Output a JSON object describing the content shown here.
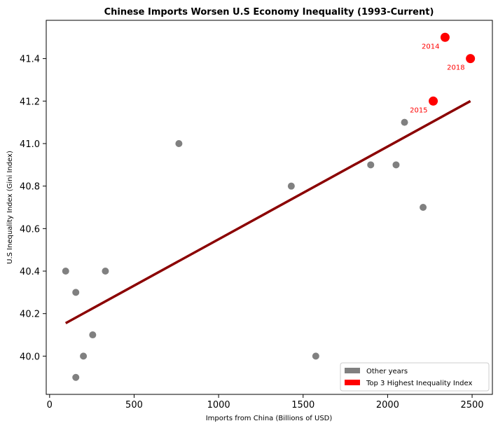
{
  "chart_data": {
    "type": "scatter",
    "title": "Chinese Imports Worsen U.S Economy Inequality (1993-Current)",
    "xlabel": "Imports from China (Billions of USD)",
    "ylabel": "U.S Inequality Index (Gini Index)",
    "xlim": [
      -20,
      2620
    ],
    "ylim": [
      39.82,
      41.58
    ],
    "xticks": [
      0,
      500,
      1000,
      1500,
      2000,
      2500
    ],
    "yticks": [
      40.0,
      40.2,
      40.4,
      40.6,
      40.8,
      41.0,
      41.2,
      41.4
    ],
    "xtick_labels": [
      "0",
      "500",
      "1000",
      "1500",
      "2000",
      "2500"
    ],
    "ytick_labels": [
      "40.0",
      "40.2",
      "40.4",
      "40.6",
      "40.8",
      "41.0",
      "41.2",
      "41.4"
    ],
    "grid": false,
    "legend_position": "lower-right",
    "series": [
      {
        "name": "Other years",
        "color": "#808080",
        "points": [
          {
            "x": 95,
            "y": 40.4
          },
          {
            "x": 155,
            "y": 40.3
          },
          {
            "x": 155,
            "y": 39.9
          },
          {
            "x": 200,
            "y": 40.0
          },
          {
            "x": 255,
            "y": 40.1
          },
          {
            "x": 330,
            "y": 40.4
          },
          {
            "x": 765,
            "y": 41.0
          },
          {
            "x": 1430,
            "y": 40.8
          },
          {
            "x": 1575,
            "y": 40.0
          },
          {
            "x": 1900,
            "y": 40.9
          },
          {
            "x": 2050,
            "y": 40.9
          },
          {
            "x": 2100,
            "y": 41.1
          },
          {
            "x": 2210,
            "y": 40.7
          }
        ]
      },
      {
        "name": "Top 3 Highest Inequality Index",
        "color": "#ff0000",
        "points": [
          {
            "x": 2340,
            "y": 41.5,
            "label": "2014"
          },
          {
            "x": 2270,
            "y": 41.2,
            "label": "2015"
          },
          {
            "x": 2490,
            "y": 41.4,
            "label": "2018"
          }
        ]
      }
    ],
    "trendline": {
      "color": "#8b0000",
      "x": [
        95,
        2490
      ],
      "y": [
        40.155,
        41.2
      ]
    }
  }
}
